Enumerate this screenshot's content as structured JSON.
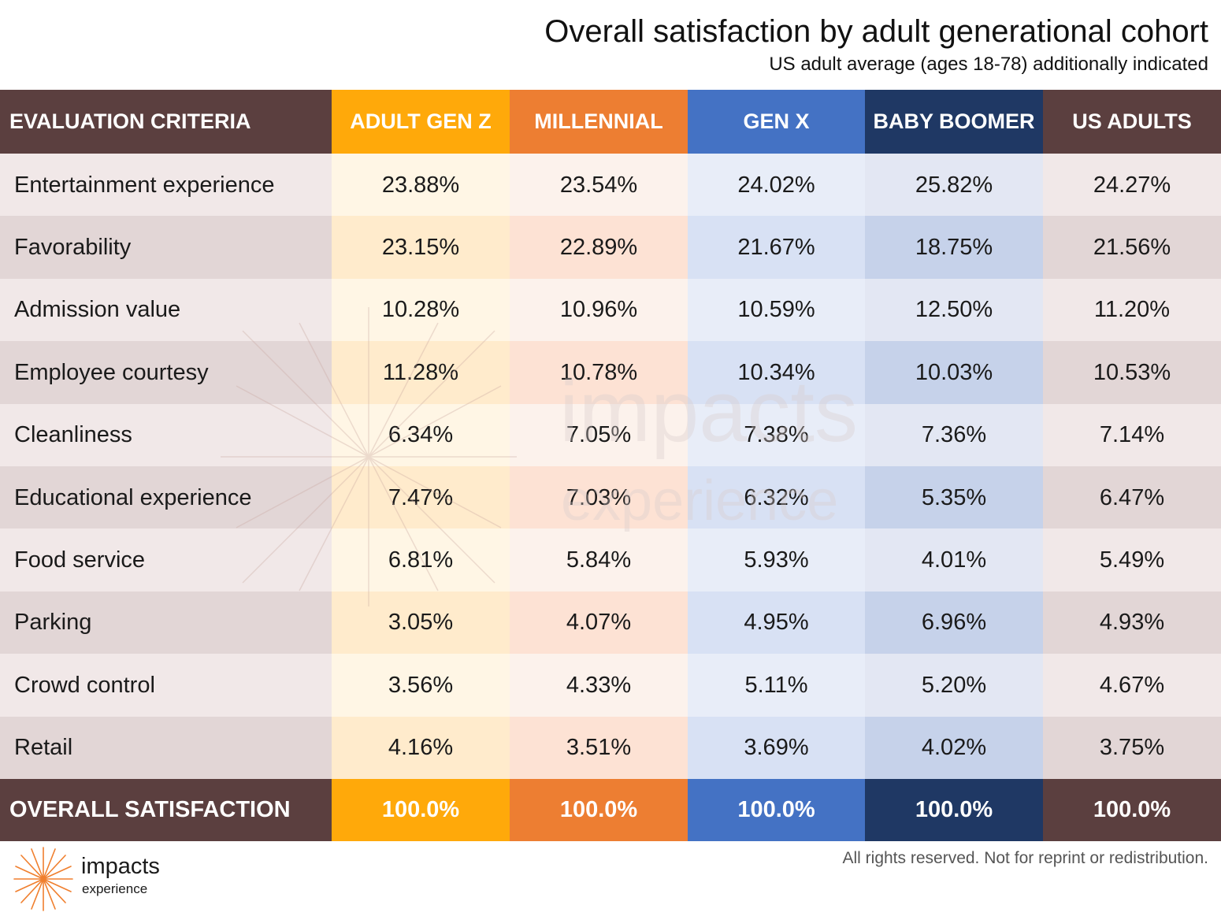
{
  "header": {
    "title": "Overall satisfaction by adult generational cohort",
    "subtitle": "US adult average (ages 18-78) additionally indicated"
  },
  "colors": {
    "label_header": "#5b3f3f",
    "gen_z": "#ffa90a",
    "millennial": "#ed7e32",
    "gen_x": "#4472c4",
    "baby_boomer": "#1f3864",
    "us_adults": "#5b3f3f",
    "row_light": [
      "#f1e8e8",
      "#fff6e5",
      "#fcf2ec",
      "#e8edf8",
      "#e3e7f3",
      "#f1e8e8"
    ],
    "row_dark": [
      "#e2d6d6",
      "#ffebcc",
      "#fde2d4",
      "#d8e1f4",
      "#c6d2ea",
      "#e2d6d6"
    ]
  },
  "chart_data": {
    "type": "table",
    "columns": [
      "EVALUATION CRITERIA",
      "ADULT GEN Z",
      "MILLENNIAL",
      "GEN X",
      "BABY BOOMER",
      "US ADULTS"
    ],
    "rows": [
      [
        "Entertainment experience",
        "23.88%",
        "23.54%",
        "24.02%",
        "25.82%",
        "24.27%"
      ],
      [
        "Favorability",
        "23.15%",
        "22.89%",
        "21.67%",
        "18.75%",
        "21.56%"
      ],
      [
        "Admission value",
        "10.28%",
        "10.96%",
        "10.59%",
        "12.50%",
        "11.20%"
      ],
      [
        "Employee courtesy",
        "11.28%",
        "10.78%",
        "10.34%",
        "10.03%",
        "10.53%"
      ],
      [
        "Cleanliness",
        "6.34%",
        "7.05%",
        "7.38%",
        "7.36%",
        "7.14%"
      ],
      [
        "Educational experience",
        "7.47%",
        "7.03%",
        "6.32%",
        "5.35%",
        "6.47%"
      ],
      [
        "Food service",
        "6.81%",
        "5.84%",
        "5.93%",
        "4.01%",
        "5.49%"
      ],
      [
        "Parking",
        "3.05%",
        "4.07%",
        "4.95%",
        "6.96%",
        "4.93%"
      ],
      [
        "Crowd control",
        "3.56%",
        "4.33%",
        "5.11%",
        "5.20%",
        "4.67%"
      ],
      [
        "Retail",
        "4.16%",
        "3.51%",
        "3.69%",
        "4.02%",
        "3.75%"
      ]
    ],
    "footer": [
      "OVERALL SATISFACTION",
      "100.0%",
      "100.0%",
      "100.0%",
      "100.0%",
      "100.0%"
    ]
  },
  "watermark": {
    "name": "impacts",
    "sub": "experience",
    "icon": "starburst-icon"
  },
  "branding": {
    "logo_icon": "starburst-icon",
    "logo_name": "impacts",
    "logo_sub": "experience",
    "logo_color": "#f07f2e",
    "rights": "All rights reserved. Not for reprint or redistribution."
  }
}
